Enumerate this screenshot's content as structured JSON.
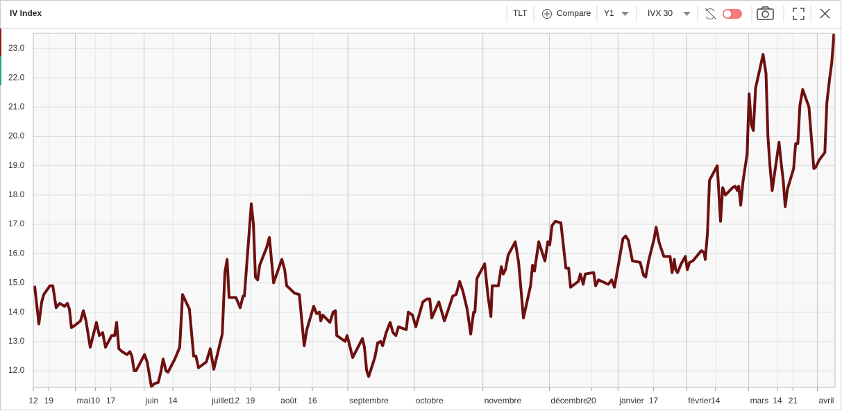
{
  "toolbar": {
    "title": "IV Index",
    "symbol": "TLT",
    "compare": "Compare",
    "period": "Y1",
    "measure": "IVX 30"
  },
  "chart_data": {
    "type": "line",
    "color": "#6e1010",
    "grid": true,
    "x": [
      0.6,
      2.5,
      3.8,
      4.7,
      7.5,
      8.8,
      10.3,
      11.9,
      14.1,
      15.4,
      16.3,
      17.2,
      18.8,
      21.3,
      22.6,
      23.8,
      25.7,
      28.5,
      29.8,
      31.3,
      32.6,
      35.4,
      36.7,
      37.6,
      38.6,
      40.1,
      42.3,
      43.6,
      44.5,
      45.5,
      46.4,
      50.2,
      51.4,
      53.3,
      54.5,
      56.4,
      57.7,
      58.6,
      59.9,
      60.8,
      63.9,
      66.1,
      67.4,
      70.5,
      72.4,
      73.4,
      74.6,
      78.1,
      79.9,
      81.5,
      85.3,
      86.5,
      87.5,
      88.4,
      91.5,
      93.4,
      94.7,
      95.3,
      98.4,
      99.4,
      100.3,
      101.3,
      102.2,
      105.3,
      106.6,
      108.5,
      112.2,
      113.5,
      114.4,
      117.9,
      120.1,
      122.3,
      123.5,
      126.6,
      127.9,
      129.2,
      129.8,
      130.7,
      133.9,
      135.4,
      136.4,
      137.0,
      140.8,
      141.7,
      144.2,
      148.6,
      149.5,
      150.5,
      151.4,
      154.2,
      155.5,
      156.8,
      157.7,
      159.3,
      161.1,
      162.4,
      163.7,
      164.9,
      168.4,
      169.3,
      171.2,
      172.7,
      175.9,
      177.8,
      179.0,
      179.9,
      183.1,
      185.6,
      187.2,
      189.4,
      190.9,
      192.5,
      194.0,
      195.9,
      197.5,
      198.8,
      199.4,
      200.3,
      203.8,
      205.3,
      206.6,
      207.2,
      210.0,
      211.3,
      212.2,
      213.2,
      214.4,
      217.6,
      219.1,
      221.3,
      224.5,
      225.4,
      226.3,
      228.2,
      231.0,
      232.3,
      233.2,
      234.2,
      235.7,
      238.2,
      239.5,
      240.5,
      241.7,
      242.6,
      246.1,
      247.0,
      248.3,
      249.2,
      253.0,
      253.9,
      255.2,
      259.6,
      261.1,
      262.4,
      263.9,
      266.2,
      267.4,
      268.7,
      270.5,
      274.0,
      275.6,
      276.5,
      277.8,
      280.3,
      281.2,
      282.5,
      283.1,
      284.7,
      287.5,
      288.4,
      289.4,
      290.0,
      290.9,
      292.5,
      294.4,
      295.3,
      296.3,
      297.8,
      301.6,
      302.8,
      303.4,
      304.4,
      305.3,
      308.8,
      310.3,
      311.3,
      312.5,
      315.7,
      316.9,
      317.9,
      318.5,
      319.4,
      320.4,
      322.3,
      323.2,
      324.2,
      325.1,
      326.1,
      329.5,
      330.8,
      331.7,
      332.6,
      333.6,
      336.7,
      337.6,
      338.6,
      339.5,
      340.5,
      343.3,
      344.2,
      345.2,
      346.1,
      347.4,
      350.2,
      352.4,
      353.3,
      354.9,
      357.4,
      358.3,
      359.6,
      360.5,
      361.5
    ],
    "values": [
      14.9,
      13.6,
      14.35,
      14.6,
      14.9,
      14.9,
      14.15,
      14.3,
      14.2,
      14.3,
      14.1,
      13.47,
      13.55,
      13.7,
      14.05,
      13.7,
      12.8,
      13.65,
      13.2,
      13.3,
      12.8,
      13.2,
      13.2,
      13.65,
      12.75,
      12.65,
      12.55,
      12.65,
      12.5,
      12.0,
      12.0,
      12.55,
      12.3,
      11.45,
      11.55,
      11.6,
      12.0,
      12.4,
      12.0,
      11.95,
      12.4,
      12.8,
      14.6,
      14.1,
      12.5,
      12.5,
      12.1,
      12.3,
      12.75,
      12.05,
      13.25,
      15.35,
      15.8,
      14.5,
      14.5,
      14.15,
      14.55,
      14.55,
      17.7,
      17.0,
      15.2,
      15.1,
      15.6,
      16.2,
      16.55,
      15.0,
      15.8,
      15.45,
      14.9,
      14.65,
      14.6,
      12.85,
      13.4,
      14.2,
      13.95,
      14.0,
      13.7,
      13.9,
      13.65,
      14.0,
      14.05,
      13.2,
      13.0,
      13.2,
      12.45,
      13.1,
      12.8,
      12.0,
      11.8,
      12.45,
      12.95,
      13.0,
      12.85,
      13.3,
      13.65,
      13.3,
      13.2,
      13.5,
      13.4,
      14.0,
      13.9,
      13.5,
      14.35,
      14.45,
      14.45,
      13.8,
      14.35,
      13.7,
      14.05,
      14.55,
      14.6,
      15.05,
      14.7,
      14.1,
      13.25,
      14.0,
      14.0,
      15.15,
      15.65,
      14.55,
      13.85,
      14.9,
      14.9,
      15.55,
      15.3,
      15.45,
      15.95,
      16.4,
      15.7,
      13.8,
      14.9,
      15.6,
      15.4,
      16.4,
      15.75,
      16.4,
      16.3,
      16.95,
      17.1,
      17.05,
      16.15,
      15.5,
      15.5,
      14.85,
      15.05,
      15.3,
      14.95,
      15.3,
      15.35,
      14.9,
      15.1,
      14.95,
      15.1,
      14.85,
      15.5,
      16.5,
      16.6,
      16.45,
      15.75,
      15.7,
      15.25,
      15.2,
      15.75,
      16.5,
      16.9,
      16.4,
      16.25,
      15.9,
      15.9,
      15.35,
      15.8,
      15.45,
      15.35,
      15.65,
      15.9,
      15.45,
      15.7,
      15.75,
      16.1,
      16.05,
      15.8,
      16.7,
      18.5,
      19.0,
      17.1,
      18.25,
      18.0,
      18.25,
      18.3,
      18.15,
      18.3,
      17.65,
      18.45,
      19.4,
      21.45,
      20.4,
      20.2,
      21.65,
      22.8,
      22.15,
      20.0,
      19.0,
      18.15,
      19.8,
      19.15,
      18.5,
      17.6,
      18.2,
      18.9,
      19.75,
      19.75,
      21.05,
      21.6,
      21.0,
      18.9,
      18.95,
      19.2,
      19.45,
      21.15,
      22.0,
      22.5,
      23.5
    ],
    "xlim": [
      0,
      362
    ],
    "xticks": [
      {
        "value": 0,
        "label": "12"
      },
      {
        "value": 7,
        "label": "19"
      },
      {
        "value": 19,
        "label": "mai"
      },
      {
        "value": 28,
        "label": "10"
      },
      {
        "value": 35,
        "label": "17"
      },
      {
        "value": 50,
        "label": "juin"
      },
      {
        "value": 63,
        "label": "14"
      },
      {
        "value": 80,
        "label": "juillet"
      },
      {
        "value": 91,
        "label": "12"
      },
      {
        "value": 98,
        "label": "19"
      },
      {
        "value": 111,
        "label": "août"
      },
      {
        "value": 126,
        "label": "16"
      },
      {
        "value": 142,
        "label": "septembre"
      },
      {
        "value": 172,
        "label": "octobre"
      },
      {
        "value": 203,
        "label": "novembre"
      },
      {
        "value": 233,
        "label": "décembre"
      },
      {
        "value": 252,
        "label": "20"
      },
      {
        "value": 264,
        "label": "janvier"
      },
      {
        "value": 280,
        "label": "17"
      },
      {
        "value": 295,
        "label": "février"
      },
      {
        "value": 308,
        "label": "14"
      },
      {
        "value": 323,
        "label": "mars"
      },
      {
        "value": 336,
        "label": "14"
      },
      {
        "value": 343,
        "label": "21"
      },
      {
        "value": 354,
        "label": "avril"
      }
    ],
    "ylim": [
      11.43,
      23.52
    ],
    "yticks": [
      {
        "value": 12,
        "label": "12.0"
      },
      {
        "value": 13,
        "label": "13.0"
      },
      {
        "value": 14,
        "label": "14.0"
      },
      {
        "value": 15,
        "label": "15.0"
      },
      {
        "value": 16,
        "label": "16.0"
      },
      {
        "value": 17,
        "label": "17.0"
      },
      {
        "value": 18,
        "label": "18.0"
      },
      {
        "value": 19,
        "label": "19.0"
      },
      {
        "value": 20,
        "label": "20.0"
      },
      {
        "value": 21,
        "label": "21.0"
      },
      {
        "value": 22,
        "label": "22.0"
      },
      {
        "value": 23,
        "label": "23.0"
      }
    ]
  }
}
